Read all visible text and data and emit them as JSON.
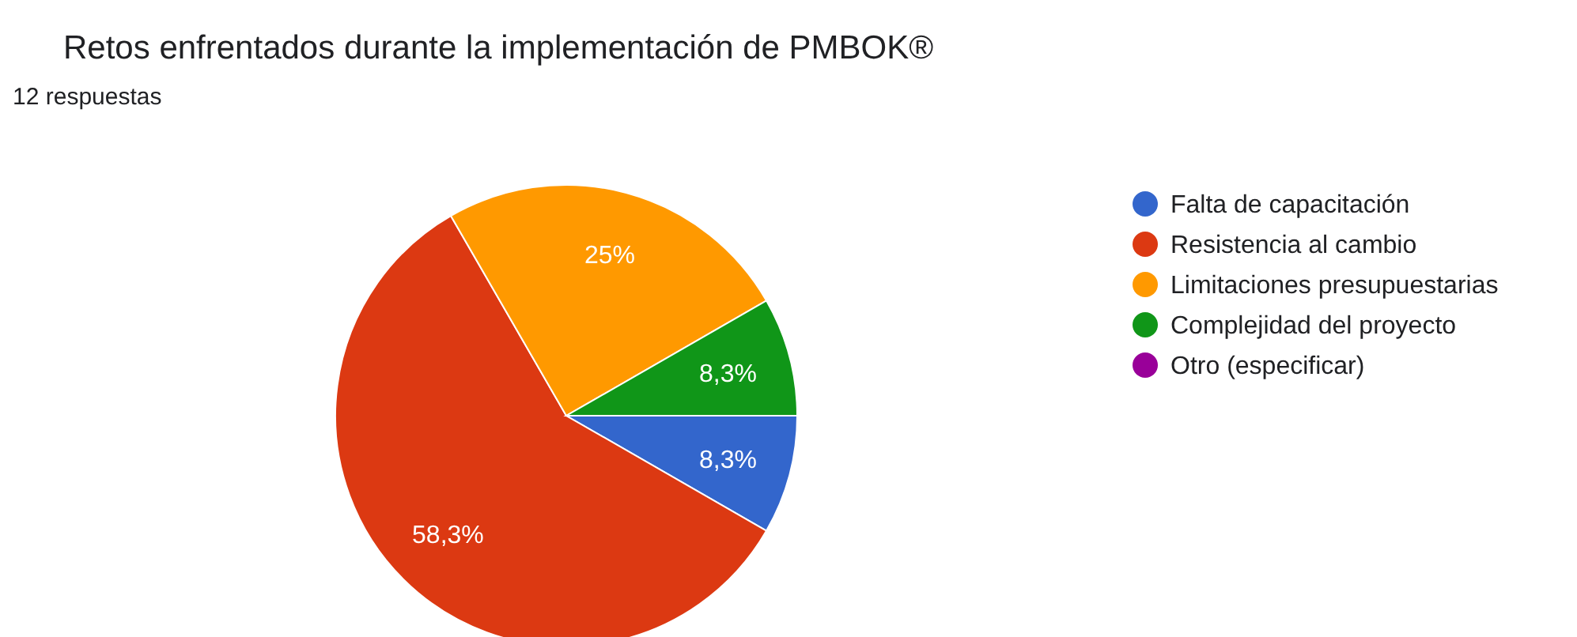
{
  "chart_data": {
    "type": "pie",
    "title": "Retos enfrentados durante la implementación de PMBOK®",
    "subtitle": "12 respuestas",
    "categories": [
      "Falta de capacitación",
      "Resistencia al cambio",
      "Limitaciones presupuestarias",
      "Complejidad del proyecto",
      "Otro (especificar)"
    ],
    "values": [
      8.3,
      58.3,
      25,
      8.3,
      0
    ],
    "value_labels": [
      "8,3%",
      "58,3%",
      "25%",
      "8,3%",
      null
    ],
    "colors": [
      "#3366cc",
      "#dc3912",
      "#ff9900",
      "#109618",
      "#990099"
    ],
    "legend": "right"
  }
}
